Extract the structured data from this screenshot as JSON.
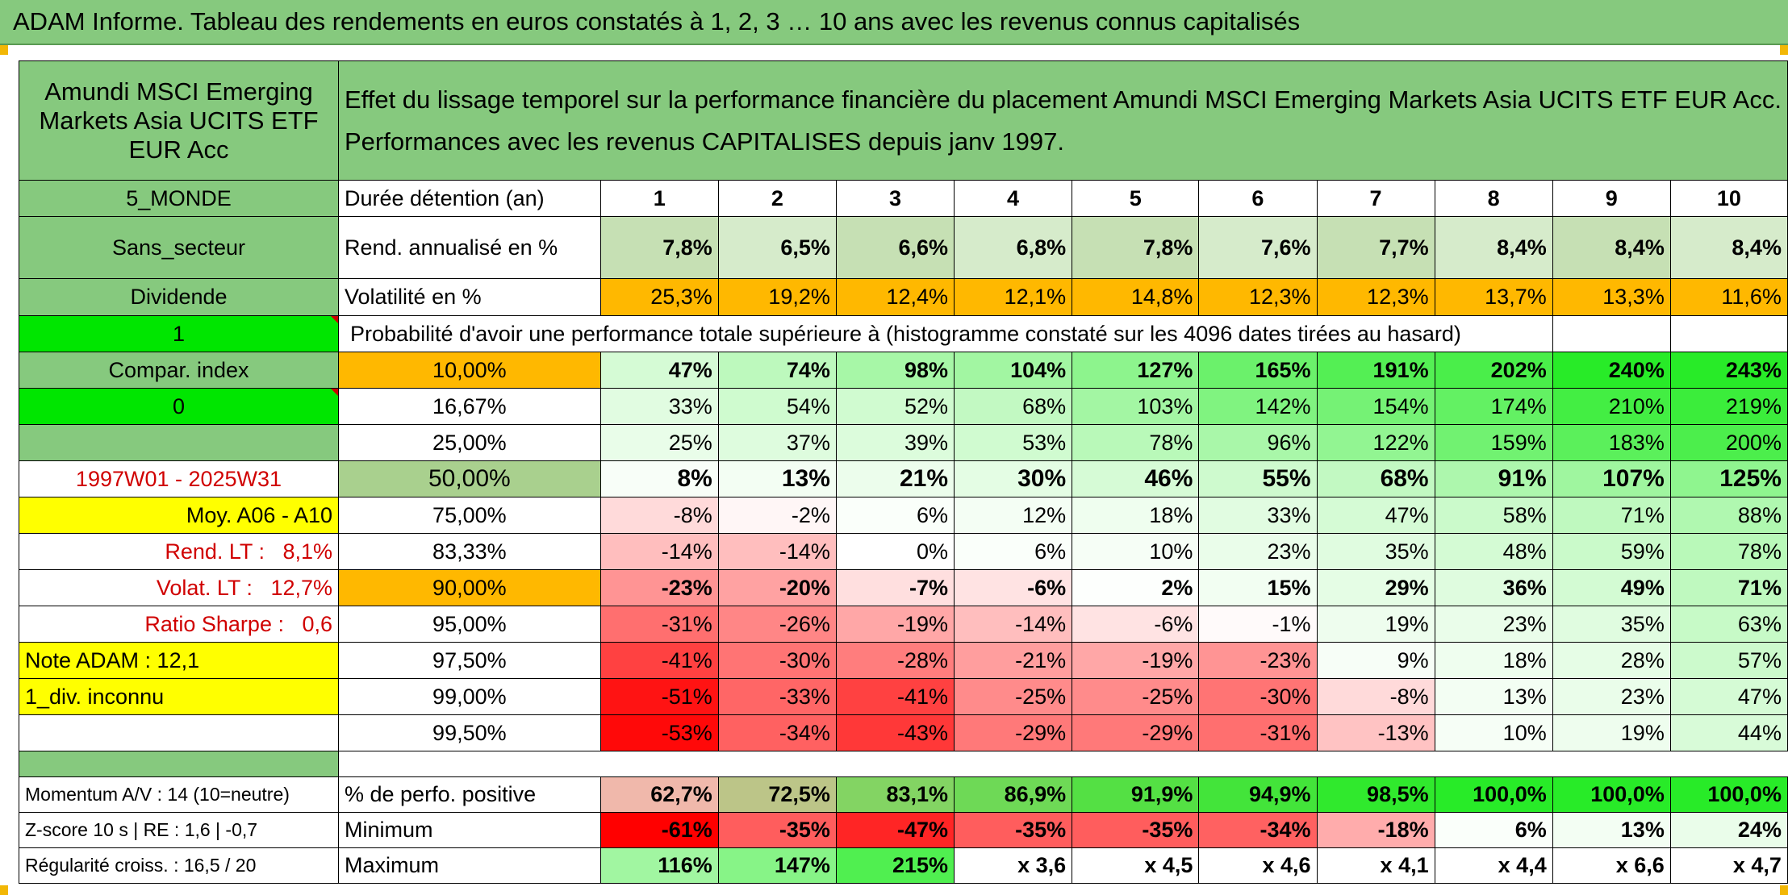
{
  "header": {
    "title": "ADAM Informe. Tableau des rendements en euros constatés à 1, 2, 3 … 10 ans avec les revenus connus capitalisés"
  },
  "left": {
    "fund_name": "Amundi MSCI Emerging Markets Asia UCITS ETF EUR Acc",
    "region": "5_MONDE",
    "sector": "Sans_secteur",
    "dividend": "Dividende",
    "one": "1",
    "compar_index": "Compar. index",
    "zero": "0",
    "period": "1997W01 - 2025W31",
    "moy": "Moy. A06 - A10",
    "rend_lt": "Rend. LT :   8,1%",
    "volat_lt": "Volat. LT :   12,7%",
    "sharpe": "Ratio Sharpe :   0,6",
    "note": "Note ADAM : 12,1",
    "div_inconnu": "1_div. inconnu",
    "momentum": "Momentum A/V : 14 (10=neutre)",
    "zscore": "Z-score 10 s | RE : 1,6 | -0,7",
    "regularite": "Régularité croiss. : 16,5 / 20"
  },
  "description": {
    "line1": "Effet du lissage temporel sur la performance financière du placement Amundi MSCI Emerging Markets Asia UCITS ETF EUR Acc.",
    "line2": "Performances avec les revenus CAPITALISES depuis janv 1997."
  },
  "rows": {
    "duree_label": "Durée détention (an)",
    "years": [
      "1",
      "2",
      "3",
      "4",
      "5",
      "6",
      "7",
      "8",
      "9",
      "10"
    ],
    "rend_label": "Rend. annualisé en %",
    "rend": [
      "7,8%",
      "6,5%",
      "6,6%",
      "6,8%",
      "7,8%",
      "7,6%",
      "7,7%",
      "8,4%",
      "8,4%",
      "8,4%"
    ],
    "vol_label": "Volatilité en %",
    "vol": [
      "25,3%",
      "19,2%",
      "12,4%",
      "12,1%",
      "14,8%",
      "12,3%",
      "12,3%",
      "13,7%",
      "13,3%",
      "11,6%"
    ],
    "proba_label": "Probabilité d'avoir une performance totale supérieure à (histogramme constaté sur les 4096 dates tirées au hasard)",
    "percentiles": [
      {
        "p": "10,00%",
        "v": [
          "47%",
          "74%",
          "98%",
          "104%",
          "127%",
          "165%",
          "191%",
          "202%",
          "240%",
          "243%"
        ]
      },
      {
        "p": "16,67%",
        "v": [
          "33%",
          "54%",
          "52%",
          "68%",
          "103%",
          "142%",
          "154%",
          "174%",
          "210%",
          "219%"
        ]
      },
      {
        "p": "25,00%",
        "v": [
          "25%",
          "37%",
          "39%",
          "53%",
          "78%",
          "96%",
          "122%",
          "159%",
          "183%",
          "200%"
        ]
      },
      {
        "p": "50,00%",
        "v": [
          "8%",
          "13%",
          "21%",
          "30%",
          "46%",
          "55%",
          "68%",
          "91%",
          "107%",
          "125%"
        ]
      },
      {
        "p": "75,00%",
        "v": [
          "-8%",
          "-2%",
          "6%",
          "12%",
          "18%",
          "33%",
          "47%",
          "58%",
          "71%",
          "88%"
        ]
      },
      {
        "p": "83,33%",
        "v": [
          "-14%",
          "-14%",
          "0%",
          "6%",
          "10%",
          "23%",
          "35%",
          "48%",
          "59%",
          "78%"
        ]
      },
      {
        "p": "90,00%",
        "v": [
          "-23%",
          "-20%",
          "-7%",
          "-6%",
          "2%",
          "15%",
          "29%",
          "36%",
          "49%",
          "71%"
        ]
      },
      {
        "p": "95,00%",
        "v": [
          "-31%",
          "-26%",
          "-19%",
          "-14%",
          "-6%",
          "-1%",
          "19%",
          "23%",
          "35%",
          "63%"
        ]
      },
      {
        "p": "97,50%",
        "v": [
          "-41%",
          "-30%",
          "-28%",
          "-21%",
          "-19%",
          "-23%",
          "9%",
          "18%",
          "28%",
          "57%"
        ]
      },
      {
        "p": "99,00%",
        "v": [
          "-51%",
          "-33%",
          "-41%",
          "-25%",
          "-25%",
          "-30%",
          "-8%",
          "13%",
          "23%",
          "47%"
        ]
      },
      {
        "p": "99,50%",
        "v": [
          "-53%",
          "-34%",
          "-43%",
          "-29%",
          "-29%",
          "-31%",
          "-13%",
          "10%",
          "19%",
          "44%"
        ]
      }
    ],
    "pos_label": "% de perfo. positive",
    "pos": [
      "62,7%",
      "72,5%",
      "83,1%",
      "86,9%",
      "91,9%",
      "94,9%",
      "98,5%",
      "100,0%",
      "100,0%",
      "100,0%"
    ],
    "min_label": "Minimum",
    "min": [
      "-61%",
      "-35%",
      "-47%",
      "-35%",
      "-35%",
      "-34%",
      "-18%",
      "6%",
      "13%",
      "24%"
    ],
    "max_label": "Maximum",
    "max": [
      "116%",
      "147%",
      "215%",
      "x 3,6",
      "x 4,5",
      "x 4,6",
      "x 4,1",
      "x 4,4",
      "x 6,6",
      "x 4,7"
    ]
  },
  "colors": {
    "header_green": "#86c97e",
    "bright_green": "#00e600",
    "yellow": "#ffff00",
    "orange": "#ffb800",
    "red_text": "#d00000"
  }
}
